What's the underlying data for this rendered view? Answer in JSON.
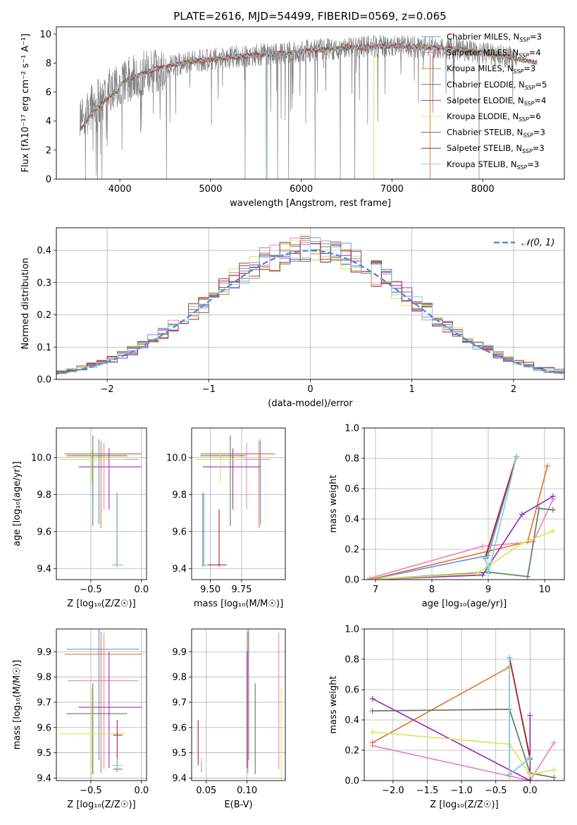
{
  "figure_title": "PLATE=2616, MJD=54499, FIBERID=0569, z=0.065",
  "colors": {
    "Chabrier MILES": "#6f94e3",
    "Salpeter MILES": "#e985c0",
    "Kroupa MILES": "#e07a33",
    "Chabrier ELODIE": "#5d7f5d",
    "Salpeter ELODIE": "#9b30b8",
    "Kroupa ELODIE": "#d8e55a",
    "Chabrier STELIB": "#666666",
    "Salpeter STELIB": "#b22222",
    "Kroupa STELIB": "#7fd4dd",
    "data": "#808080",
    "normal": "#5b8bd6"
  },
  "chart_data": [
    {
      "id": "spectrum",
      "type": "line",
      "title": "PLATE=2616, MJD=54499, FIBERID=0569, z=0.065",
      "xlabel": "wavelength [Angstrom, rest frame]",
      "ylabel": "Flux [fλ10⁻¹⁷ erg cm⁻² s⁻¹ A⁻¹]",
      "xlim": [
        3300,
        8900
      ],
      "ylim": [
        0,
        10.5
      ],
      "xticks": [
        "4000",
        "5000",
        "6000",
        "7000",
        "8000"
      ],
      "yticks": [
        "0",
        "2",
        "4",
        "6",
        "8",
        "10"
      ],
      "grid": false,
      "legend_position": "right",
      "legend": [
        {
          "label": "Chabrier MILES, N",
          "sub": "SSP",
          "suffix": "=3"
        },
        {
          "label": "Salpeter MILES, N",
          "sub": "SSP",
          "suffix": "=4"
        },
        {
          "label": "Kroupa MILES, N",
          "sub": "SSP",
          "suffix": "=3"
        },
        {
          "label": "Chabrier ELODIE, N",
          "sub": "SSP",
          "suffix": "=5"
        },
        {
          "label": "Salpeter ELODIE, N",
          "sub": "SSP",
          "suffix": "=4"
        },
        {
          "label": "Kroupa ELODIE, N",
          "sub": "SSP",
          "suffix": "=6"
        },
        {
          "label": "Chabrier STELIB, N",
          "sub": "SSP",
          "suffix": "=3"
        },
        {
          "label": "Salpeter STELIB, N",
          "sub": "SSP",
          "suffix": "=3"
        },
        {
          "label": "Kroupa STELIB, N",
          "sub": "SSP",
          "suffix": "=3"
        }
      ],
      "continuum_anchors": [
        [
          3550,
          3.7
        ],
        [
          3700,
          5.0
        ],
        [
          3900,
          6.2
        ],
        [
          4100,
          6.9
        ],
        [
          4400,
          7.6
        ],
        [
          4800,
          8.1
        ],
        [
          5200,
          8.4
        ],
        [
          5600,
          8.6
        ],
        [
          6000,
          8.8
        ],
        [
          6500,
          9.05
        ],
        [
          7000,
          9.2
        ],
        [
          7400,
          9.1
        ],
        [
          7800,
          8.9
        ],
        [
          8200,
          8.5
        ],
        [
          8700,
          7.9
        ]
      ]
    },
    {
      "id": "residuals",
      "type": "histogram",
      "xlabel": "(data-model)/error",
      "ylabel": "Normed distribution",
      "xlim": [
        -2.5,
        2.5
      ],
      "ylim": [
        0,
        0.47
      ],
      "xticks": [
        "−2",
        "−1",
        "0",
        "1",
        "2"
      ],
      "yticks": [
        "0.0",
        "0.1",
        "0.2",
        "0.3",
        "0.4"
      ],
      "grid": true,
      "legend_position": "top-right",
      "legend_label": "𝒩(0, 1)",
      "bin_width": 0.1
    },
    {
      "id": "age_vs_Z",
      "type": "errorbar",
      "xlabel": "Z [log₁₀(Z/Z☉)]",
      "ylabel": "age  [log₁₀(age/yr)]",
      "xlim": [
        -0.84,
        0.05
      ],
      "ylim": [
        9.34,
        10.16
      ],
      "xticks": [
        "−0.5",
        "0.0"
      ],
      "yticks": [
        "9.4",
        "9.6",
        "9.8",
        "10.0"
      ],
      "grid": true,
      "points": [
        {
          "model": "Chabrier MILES",
          "x": -0.42,
          "xerr": [
            0.32,
            0.4
          ],
          "y": 10.02,
          "yerr": [
            0.38,
            0.08
          ]
        },
        {
          "model": "Salpeter MILES",
          "x": -0.37,
          "xerr": [
            0.36,
            0.34
          ],
          "y": 9.99,
          "yerr": [
            0.27,
            0.09
          ]
        },
        {
          "model": "Kroupa MILES",
          "x": -0.4,
          "xerr": [
            0.36,
            0.4
          ],
          "y": 10.02,
          "yerr": [
            0.4,
            0.07
          ]
        },
        {
          "model": "Chabrier ELODIE",
          "x": -0.48,
          "xerr": [
            0.26,
            0.34
          ],
          "y": 10.01,
          "yerr": [
            0.38,
            0.11
          ]
        },
        {
          "model": "Salpeter ELODIE",
          "x": -0.32,
          "xerr": [
            0.3,
            0.32
          ],
          "y": 9.95,
          "yerr": [
            0.23,
            0.1
          ]
        },
        {
          "model": "Kroupa ELODIE",
          "x": -0.49,
          "xerr": [
            0.32,
            0.32
          ],
          "y": 9.99,
          "yerr": [
            0.13,
            0.05
          ]
        },
        {
          "model": "Chabrier STELIB",
          "x": -0.24,
          "xerr": [
            0.04,
            0.05
          ],
          "y": 9.42,
          "yerr": [
            0.01,
            0.39
          ]
        },
        {
          "model": "Salpeter STELIB",
          "x": -0.24,
          "xerr": [
            0.04,
            0.05
          ],
          "y": 9.42,
          "yerr": [
            0.01,
            0.39
          ]
        },
        {
          "model": "Kroupa STELIB",
          "x": -0.24,
          "xerr": [
            0.05,
            0.06
          ],
          "y": 9.42,
          "yerr": [
            0.01,
            0.39
          ]
        }
      ]
    },
    {
      "id": "age_vs_mass",
      "type": "errorbar",
      "xlabel": "mass [log₁₀(M/M☉)]",
      "ylabel": "",
      "xlim": [
        9.35,
        10.1
      ],
      "ylim": [
        9.34,
        10.16
      ],
      "xticks": [
        "9.50",
        "9.75"
      ],
      "yticks": [
        "9.4",
        "9.6",
        "9.8",
        "10.0"
      ],
      "grid": true,
      "points": [
        {
          "model": "Chabrier MILES",
          "x": 9.9,
          "xerr": [
            0.44,
            0.12
          ],
          "y": 10.02,
          "yerr": [
            0.38,
            0.08
          ]
        },
        {
          "model": "Salpeter MILES",
          "x": 9.79,
          "xerr": [
            0.35,
            0.19
          ],
          "y": 9.99,
          "yerr": [
            0.27,
            0.09
          ]
        },
        {
          "model": "Kroupa MILES",
          "x": 9.89,
          "xerr": [
            0.47,
            0.09
          ],
          "y": 10.02,
          "yerr": [
            0.4,
            0.07
          ]
        },
        {
          "model": "Chabrier ELODIE",
          "x": 9.66,
          "xerr": [
            0.24,
            0.12
          ],
          "y": 10.01,
          "yerr": [
            0.38,
            0.11
          ]
        },
        {
          "model": "Salpeter ELODIE",
          "x": 9.68,
          "xerr": [
            0.24,
            0.22
          ],
          "y": 9.95,
          "yerr": [
            0.23,
            0.1
          ]
        },
        {
          "model": "Kroupa ELODIE",
          "x": 9.58,
          "xerr": [
            0.2,
            0.18
          ],
          "y": 9.99,
          "yerr": [
            0.13,
            0.05
          ]
        },
        {
          "model": "Chabrier STELIB",
          "x": 9.44,
          "xerr": [
            0.01,
            0.03
          ],
          "y": 9.42,
          "yerr": [
            0.01,
            0.39
          ]
        },
        {
          "model": "Salpeter STELIB",
          "x": 9.57,
          "xerr": [
            0.12,
            0.06
          ],
          "y": 9.42,
          "yerr": [
            0.01,
            0.3
          ]
        },
        {
          "model": "Kroupa STELIB",
          "x": 9.45,
          "xerr": [
            0.02,
            0.03
          ],
          "y": 9.42,
          "yerr": [
            0.01,
            0.39
          ]
        }
      ]
    },
    {
      "id": "weight_vs_age",
      "type": "line",
      "xlabel": "age  [log₁₀(age/yr)]",
      "ylabel": "mass weight",
      "xlim": [
        6.8,
        10.35
      ],
      "ylim": [
        0,
        1.0
      ],
      "xticks": [
        "7",
        "8",
        "9",
        "10"
      ],
      "yticks": [
        "0.0",
        "0.2",
        "0.4",
        "0.6",
        "0.8",
        "1.0"
      ],
      "grid": true,
      "series": [
        {
          "model": "Chabrier MILES",
          "x": [
            6.9,
            9.0,
            9.5
          ],
          "y": [
            0.0,
            0.16,
            0.81
          ]
        },
        {
          "model": "Salpeter MILES",
          "x": [
            6.9,
            8.9,
            9.8,
            10.15
          ],
          "y": [
            0.01,
            0.22,
            0.25,
            0.53
          ]
        },
        {
          "model": "Kroupa MILES",
          "x": [
            6.9,
            9.7,
            10.05
          ],
          "y": [
            0.0,
            0.25,
            0.75
          ]
        },
        {
          "model": "Chabrier ELODIE",
          "x": [
            6.9,
            9.0,
            9.7,
            9.9,
            10.15
          ],
          "y": [
            0.0,
            0.05,
            0.02,
            0.47,
            0.46
          ]
        },
        {
          "model": "Salpeter ELODIE",
          "x": [
            6.9,
            8.9,
            9.6,
            10.15
          ],
          "y": [
            0.0,
            0.03,
            0.43,
            0.55
          ]
        },
        {
          "model": "Kroupa ELODIE",
          "x": [
            6.9,
            8.8,
            9.6,
            10.15
          ],
          "y": [
            0.0,
            0.04,
            0.24,
            0.32
          ]
        },
        {
          "model": "Chabrier STELIB",
          "x": [
            8.95,
            9.5
          ],
          "y": [
            0.14,
            0.81
          ]
        },
        {
          "model": "Salpeter STELIB",
          "x": [
            8.95,
            9.5
          ],
          "y": [
            0.15,
            0.81
          ]
        },
        {
          "model": "Kroupa STELIB",
          "x": [
            8.95,
            9.0,
            9.5
          ],
          "y": [
            0.15,
            0.04,
            0.81
          ]
        }
      ]
    },
    {
      "id": "mass_vs_Z",
      "type": "errorbar",
      "xlabel": "Z [log₁₀(Z/Z☉)]",
      "ylabel": "mass [log₁₀(M/M☉)]",
      "xlim": [
        -0.84,
        0.05
      ],
      "ylim": [
        9.39,
        9.99
      ],
      "xticks": [
        "−0.5",
        "0.0"
      ],
      "yticks": [
        "9.4",
        "9.5",
        "9.6",
        "9.7",
        "9.8",
        "9.9"
      ],
      "grid": true,
      "points": [
        {
          "model": "Chabrier MILES",
          "x": -0.42,
          "xerr": [
            0.32,
            0.4
          ],
          "y": 9.91,
          "yerr": [
            0.44,
            0.12
          ]
        },
        {
          "model": "Salpeter MILES",
          "x": -0.37,
          "xerr": [
            0.36,
            0.34
          ],
          "y": 9.785,
          "yerr": [
            0.35,
            0.19
          ]
        },
        {
          "model": "Kroupa MILES",
          "x": -0.4,
          "xerr": [
            0.36,
            0.4
          ],
          "y": 9.89,
          "yerr": [
            0.47,
            0.09
          ]
        },
        {
          "model": "Chabrier ELODIE",
          "x": -0.48,
          "xerr": [
            0.26,
            0.34
          ],
          "y": 9.655,
          "yerr": [
            0.24,
            0.12
          ]
        },
        {
          "model": "Salpeter ELODIE",
          "x": -0.32,
          "xerr": [
            0.3,
            0.32
          ],
          "y": 9.68,
          "yerr": [
            0.24,
            0.22
          ]
        },
        {
          "model": "Kroupa ELODIE",
          "x": -0.49,
          "xerr": [
            0.32,
            0.32
          ],
          "y": 9.575,
          "yerr": [
            0.2,
            0.18
          ]
        },
        {
          "model": "Chabrier STELIB",
          "x": -0.24,
          "xerr": [
            0.04,
            0.05
          ],
          "y": 9.435,
          "yerr": [
            0.01,
            0.03
          ]
        },
        {
          "model": "Salpeter STELIB",
          "x": -0.24,
          "xerr": [
            0.04,
            0.05
          ],
          "y": 9.57,
          "yerr": [
            0.12,
            0.06
          ]
        },
        {
          "model": "Kroupa STELIB",
          "x": -0.24,
          "xerr": [
            0.05,
            0.06
          ],
          "y": 9.45,
          "yerr": [
            0.02,
            0.03
          ]
        }
      ]
    },
    {
      "id": "mass_vs_ebv",
      "type": "errorbar",
      "xlabel": "E(B-V)",
      "ylabel": "",
      "xlim": [
        0.032,
        0.147
      ],
      "ylim": [
        9.39,
        9.99
      ],
      "xticks": [
        "0.05",
        "0.10"
      ],
      "yticks": [
        "9.4",
        "9.5",
        "9.6",
        "9.7",
        "9.8",
        "9.9"
      ],
      "grid": true,
      "points": [
        {
          "model": "Chabrier MILES",
          "x": 0.102,
          "y": 9.91,
          "yerr": [
            0.44,
            0.12
          ]
        },
        {
          "model": "Salpeter MILES",
          "x": 0.139,
          "y": 9.785,
          "yerr": [
            0.35,
            0.19
          ]
        },
        {
          "model": "Kroupa MILES",
          "x": 0.101,
          "y": 9.89,
          "yerr": [
            0.47,
            0.09
          ]
        },
        {
          "model": "Chabrier ELODIE",
          "x": 0.11,
          "y": 9.655,
          "yerr": [
            0.24,
            0.12
          ]
        },
        {
          "model": "Salpeter ELODIE",
          "x": 0.1,
          "y": 9.68,
          "yerr": [
            0.24,
            0.22
          ]
        },
        {
          "model": "Kroupa ELODIE",
          "x": 0.142,
          "y": 9.575,
          "yerr": [
            0.2,
            0.18
          ]
        },
        {
          "model": "Chabrier STELIB",
          "x": 0.044,
          "y": 9.435,
          "yerr": [
            0.01,
            0.03
          ]
        },
        {
          "model": "Salpeter STELIB",
          "x": 0.04,
          "y": 9.57,
          "yerr": [
            0.12,
            0.06
          ]
        },
        {
          "model": "Kroupa STELIB",
          "x": 0.044,
          "y": 9.45,
          "yerr": [
            0.02,
            0.03
          ]
        }
      ]
    },
    {
      "id": "weight_vs_Z",
      "type": "line",
      "xlabel": "Z [log₁₀(Z/Z☉)]",
      "ylabel": "mass weight",
      "xlim": [
        -2.42,
        0.5
      ],
      "ylim": [
        0,
        1.0
      ],
      "xticks": [
        "−2.0",
        "−1.5",
        "−1.0",
        "−0.5",
        "0.0"
      ],
      "yticks": [
        "0.0",
        "0.2",
        "0.4",
        "0.6",
        "0.8",
        "1.0"
      ],
      "grid": true,
      "series": [
        {
          "model": "Chabrier MILES",
          "x": [
            -0.3,
            -0.3,
            0.0
          ],
          "y": [
            0.81,
            0.04,
            0.15
          ]
        },
        {
          "model": "Salpeter MILES",
          "x": [
            -2.3,
            0.0,
            0.35
          ],
          "y": [
            0.23,
            0.0,
            0.25
          ]
        },
        {
          "model": "Kroupa MILES",
          "x": [
            -2.3,
            -0.3,
            -0.3
          ],
          "y": [
            0.25,
            0.75,
            0.03
          ]
        },
        {
          "model": "Chabrier ELODIE",
          "x": [
            -2.3,
            -0.3,
            0.0,
            0.35
          ],
          "y": [
            0.46,
            0.47,
            0.05,
            0.02
          ]
        },
        {
          "model": "Salpeter ELODIE",
          "x": [
            -2.3,
            0.0,
            0.0
          ],
          "y": [
            0.54,
            0.0,
            0.43
          ]
        },
        {
          "model": "Kroupa ELODIE",
          "x": [
            -2.3,
            -0.3,
            0.0,
            0.35
          ],
          "y": [
            0.32,
            0.24,
            0.04,
            0.07
          ]
        },
        {
          "model": "Chabrier STELIB",
          "x": [
            -0.3,
            0.0
          ],
          "y": [
            0.81,
            0.14
          ]
        },
        {
          "model": "Salpeter STELIB",
          "x": [
            -0.3,
            0.0
          ],
          "y": [
            0.81,
            0.15
          ]
        },
        {
          "model": "Kroupa STELIB",
          "x": [
            -0.3,
            -0.3,
            0.0
          ],
          "y": [
            0.81,
            0.04,
            0.15
          ]
        }
      ]
    }
  ]
}
